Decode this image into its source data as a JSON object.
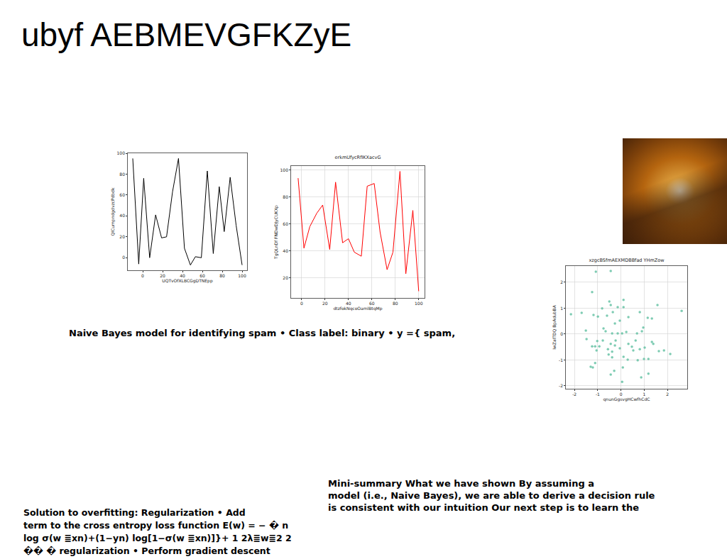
{
  "title": "ubyf AEBMEVGFKZyE",
  "text_blocks": {
    "spam_heading": "Naive Bayes model for identifying spam • Class label: binary • y ={ spam,",
    "mini_summary": [
      "Mini-summary What we have shown By assuming a",
      "model (i.e., Naive Bayes), we are able to derive a decision rule",
      "is consistent with our intuition Our next step is to learn the"
    ],
    "regularization": [
      "Solution to overfitting: Regularization • Add",
      "term to the cross entropy loss function E(w) = − � n",
      "log σ(w ≣xn)+(1−yn) log[1−σ(w ≣xn)]}+ 1 2λ≣w≣2 2",
      "�� � regularization • Perform gradient descent"
    ]
  },
  "chart_data": [
    {
      "type": "line",
      "x_label": "UQTvOfXLBCGgDTNEpp",
      "y_label": "QlCumpndgdvzcPdbdk",
      "x": [
        -10,
        -4,
        1,
        7,
        13,
        19,
        24,
        30,
        36,
        42,
        48,
        53,
        59,
        65,
        71,
        77,
        82,
        88,
        94,
        100
      ],
      "values": [
        95,
        -6,
        76,
        0,
        41,
        19,
        20,
        63,
        95,
        9,
        -7,
        1,
        0,
        83,
        4,
        68,
        25,
        77,
        31,
        -7
      ],
      "color": "#000000",
      "xlim": [
        -15,
        105
      ],
      "ylim": [
        -12,
        100
      ],
      "xticks": [
        0,
        20,
        40,
        60,
        80,
        100
      ],
      "yticks": [
        0,
        20,
        40,
        60,
        80,
        100
      ],
      "grid": false
    },
    {
      "type": "line",
      "title": "erkmUfycRfIKXacvG",
      "x_label": "dtzfokNqcoOamlBtqMp",
      "y_label": "TgQLnDf FNDwDJyCUKXp",
      "x": [
        -3,
        2,
        7,
        13,
        18,
        24,
        29,
        35,
        40,
        45,
        51,
        56,
        62,
        67,
        73,
        78,
        84,
        89,
        95,
        100
      ],
      "values": [
        94,
        42,
        58,
        68,
        74,
        41,
        91,
        46,
        49,
        39,
        36,
        88,
        90,
        54,
        26,
        39,
        99,
        23,
        70,
        10
      ],
      "color": "#ff0000",
      "xlim": [
        -9,
        105
      ],
      "ylim": [
        5,
        103
      ],
      "xticks": [
        0,
        20,
        40,
        60,
        80,
        100
      ],
      "yticks": [
        20,
        40,
        60,
        80,
        100
      ],
      "grid": true
    },
    {
      "type": "scatter",
      "title": "xzgcBSfmAEXMDBBfad YHmZow",
      "x_label": "qnunGgsvgHCwfhCdC",
      "y_label": "lwZaITDQ BpAdubBA",
      "x": [
        -1.08,
        -0.44,
        -1.24,
        -2.15,
        -1.69,
        -1.18,
        -0.99,
        -0.81,
        -0.5,
        -0.44,
        -0.35,
        -0.14,
        0.11,
        0.11,
        0.32,
        -0.05,
        -0.75,
        -1.51,
        -0.66,
        -0.38,
        -0.26,
        -0.14,
        0.05,
        0.23,
        0.81,
        1.15,
        1.33,
        1.57,
        0.9,
        0.96,
        0.69,
        0.63,
        0.32,
        -0.23,
        -0.44,
        -0.78,
        -1.02,
        -1.11,
        -0.93,
        -1.24,
        -1.48,
        -1.05,
        -0.56,
        -0.38,
        -0.26,
        -0.05,
        0.47,
        0.81,
        1.02,
        1.33,
        1.63,
        1.85,
        2.12,
        1.39,
        1.18,
        0.99,
        0.72,
        0.53,
        0.11,
        0.29,
        -0.38,
        -0.53,
        -1.11,
        -1.21,
        -1.3,
        -0.44,
        0.08,
        0.87,
        1.18,
        0.05,
        2.61,
        -0.29,
        -0.6
      ],
      "values": [
        2.41,
        2.44,
        1.62,
        0.77,
        0.82,
        0.74,
        0.68,
        0.99,
        1.26,
        1.12,
        0.85,
        1.04,
        1.32,
        1.04,
        0.66,
        0.52,
        0.22,
        0.14,
        0.11,
        0.03,
        0.41,
        0.03,
        0.03,
        0.08,
        0.85,
        0.63,
        0.6,
        1.12,
        0.11,
        0.25,
        0.03,
        -0.25,
        -0.38,
        -0.25,
        -0.38,
        -0.25,
        -0.27,
        -0.47,
        -0.47,
        -0.47,
        -0.19,
        -0.63,
        -0.58,
        -0.68,
        -0.44,
        -0.55,
        -0.49,
        -0.58,
        -0.52,
        -0.3,
        -0.66,
        -0.63,
        -0.77,
        -0.38,
        -0.96,
        -0.96,
        -1.01,
        -0.63,
        -0.88,
        -0.99,
        -0.9,
        -0.79,
        -1.12,
        -1.29,
        -1.26,
        -1.56,
        -1.29,
        -1.67,
        -1.53,
        -1.84,
        0.9,
        -1.42,
        0.71
      ],
      "color": "#66c2a5",
      "xlim": [
        -2.37,
        2.85
      ],
      "ylim": [
        -2.11,
        2.63
      ],
      "xticks": [
        -2,
        -1,
        0,
        1,
        2
      ],
      "yticks": [
        -2,
        -1,
        0,
        1,
        2
      ],
      "grid": true
    }
  ]
}
